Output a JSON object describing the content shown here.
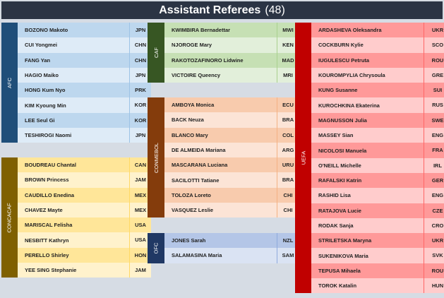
{
  "header": {
    "title": "Assistant Referees",
    "count": "(48)"
  },
  "groups": [
    {
      "confederation": "AFC",
      "colors": {
        "label": "#1f4e79",
        "row_dark": "#bdd7ee",
        "row_light": "#deebf7",
        "divider": "#9dc3e6"
      },
      "referees": [
        [
          "BOZONO Makoto",
          "JPN"
        ],
        [
          "CUI Yongmei",
          "CHN"
        ],
        [
          "FANG Yan",
          "CHN"
        ],
        [
          "HAGIO Maiko",
          "JPN"
        ],
        [
          "HONG Kum Nyo",
          "PRK"
        ],
        [
          "KIM Kyoung Min",
          "KOR"
        ],
        [
          "LEE Seul Gi",
          "KOR"
        ],
        [
          "TESHIROGI Naomi",
          "JPN"
        ]
      ]
    },
    {
      "confederation": "CONCACAF",
      "colors": {
        "label": "#7f6000",
        "row_dark": "#ffe699",
        "row_light": "#fff2cc",
        "divider": "#ffd966"
      },
      "referees": [
        [
          "BOUDREAU Chantal",
          "CAN"
        ],
        [
          "BROWN Princess",
          "JAM"
        ],
        [
          "CAUDILLO Enedina",
          "MEX"
        ],
        [
          "CHAVEZ Mayte",
          "MEX"
        ],
        [
          "MARISCAL Felisha",
          "USA"
        ],
        [
          "NESBITT Kathryn",
          "USA"
        ],
        [
          "PERELLO Shirley",
          "HON"
        ],
        [
          "YEE SING Stephanie",
          "JAM"
        ]
      ]
    },
    {
      "confederation": "CAF",
      "colors": {
        "label": "#375623",
        "row_dark": "#c6e0b4",
        "row_light": "#e2efda",
        "divider": "#a9d08e"
      },
      "referees": [
        [
          "KWIMBIRA Bernadettar",
          "MWI"
        ],
        [
          "NJOROGE Mary",
          "KEN"
        ],
        [
          "RAKOTOZAFINORO Lidwine",
          "MAD"
        ],
        [
          "VICTOIRE Queency",
          "MRI"
        ]
      ]
    },
    {
      "confederation": "CONMEBOL",
      "colors": {
        "label": "#843c0c",
        "row_dark": "#f8cbad",
        "row_light": "#fce4d6",
        "divider": "#f4b183"
      },
      "referees": [
        [
          "AMBOYA Monica",
          "ECU"
        ],
        [
          "BACK Neuza",
          "BRA"
        ],
        [
          "BLANCO Mary",
          "COL"
        ],
        [
          "DE ALMEIDA Mariana",
          "ARG"
        ],
        [
          "MASCARANA Luciana",
          "URU"
        ],
        [
          "SACILOTTI Tatiane",
          "BRA"
        ],
        [
          "TOLOZA Loreto",
          "CHI"
        ],
        [
          "VASQUEZ Leslie",
          "CHI"
        ]
      ]
    },
    {
      "confederation": "OFC",
      "colors": {
        "label": "#203864",
        "row_dark": "#b4c6e7",
        "row_light": "#dae3f3",
        "divider": "#8faadc"
      },
      "referees": [
        [
          "JONES Sarah",
          "NZL"
        ],
        [
          "SALAMASINA Maria",
          "SAM"
        ]
      ]
    },
    {
      "confederation": "UEFA",
      "colors": {
        "label": "#c00000",
        "row_dark": "#ff9999",
        "row_light": "#ffcccc",
        "divider": "#ff6666"
      },
      "referees": [
        [
          "ARDASHEVA Oleksandra",
          "UKR"
        ],
        [
          "COCKBURN Kylie",
          "SCO"
        ],
        [
          "IUGULESCU Petruta",
          "ROU"
        ],
        [
          "KOUROMPYLIA Chrysoula",
          "GRE"
        ],
        [
          "KUNG Susanne",
          "SUI"
        ],
        [
          "KUROCHKINA Ekaterina",
          "RUS"
        ],
        [
          "MAGNUSSON Julia",
          "SWE"
        ],
        [
          "MASSEY Sian",
          "ENG"
        ],
        [
          "NICOLOSI Manuela",
          "FRA"
        ],
        [
          "O'NEILL Michelle",
          "IRL"
        ],
        [
          "RAFALSKI Katrin",
          "GER"
        ],
        [
          "RASHID Lisa",
          "ENG"
        ],
        [
          "RATAJOVA Lucie",
          "CZE"
        ],
        [
          "RODAK Sanja",
          "CRO"
        ],
        [
          "STRILETSKA Maryna",
          "UKR"
        ],
        [
          "SUKENIKOVA Maria",
          "SVK"
        ],
        [
          "TEPUSA Mihaela",
          "ROU"
        ],
        [
          "TOROK Katalin",
          "HUN"
        ]
      ]
    }
  ]
}
